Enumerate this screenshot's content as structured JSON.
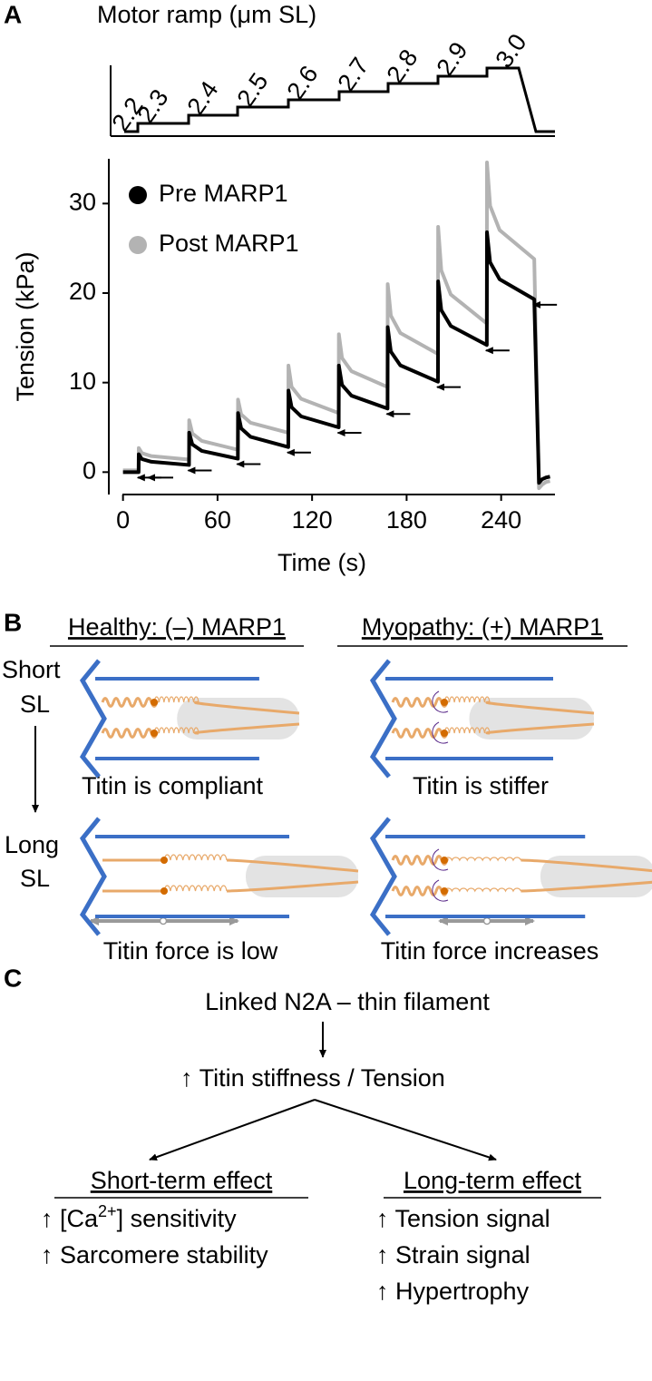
{
  "chart_data": {
    "type": "line",
    "panel": "A",
    "ramp": {
      "label": "Motor ramp (μm SL)",
      "levels": [
        "2.2",
        "2.3",
        "2.4",
        "2.5",
        "2.6",
        "2.7",
        "2.8",
        "2.9",
        "3.0"
      ]
    },
    "x_label": "Time (s)",
    "y_label": "Tension (kPa)",
    "x": [
      0,
      9.9,
      10,
      12,
      18,
      41.9,
      42,
      44,
      50,
      72.9,
      73,
      75,
      81,
      104.9,
      105,
      107,
      113,
      136.9,
      137,
      139,
      145,
      167.9,
      168,
      170,
      176,
      199.9,
      200,
      202,
      208,
      230.9,
      231,
      233,
      239,
      261,
      264,
      266,
      268.5,
      271
    ],
    "series": [
      {
        "name": "Pre MARP1",
        "color": "#000000",
        "values": [
          0,
          0,
          2.0,
          1.46,
          1.16,
          0.8,
          4.4,
          3.1,
          2.37,
          1.5,
          6.6,
          4.89,
          3.94,
          2.8,
          9.1,
          7.25,
          6.23,
          5.0,
          11.9,
          9.74,
          8.54,
          7.1,
          16.2,
          13.46,
          11.93,
          10.1,
          21.3,
          18.1,
          16.33,
          14.2,
          26.8,
          23.43,
          21.55,
          19.3,
          -1.2,
          -0.8,
          -0.6,
          -0.5
        ]
      },
      {
        "name": "Post MARP1",
        "color": "#b3b3b3",
        "values": [
          0.2,
          0.2,
          2.7,
          2.12,
          1.79,
          1.4,
          5.8,
          4.32,
          3.49,
          2.5,
          8.1,
          6.44,
          5.51,
          4.4,
          11.9,
          9.52,
          8.19,
          6.6,
          15.4,
          12.75,
          11.27,
          9.5,
          21.0,
          17.49,
          15.54,
          13.2,
          27.4,
          22.54,
          19.84,
          16.6,
          34.6,
          29.74,
          27.04,
          23.8,
          -1.8,
          -1.4,
          -1.1,
          -1.0
        ]
      }
    ],
    "xlim": [
      -9,
      273
    ],
    "ylim": [
      -2.5,
      35
    ],
    "xticks": [
      0,
      60,
      120,
      180,
      240
    ],
    "yticks": [
      0,
      10,
      20,
      30
    ]
  },
  "panel_b": {
    "label": "B",
    "healthy": "Healthy: (–) MARP1",
    "myopathy": "Myopathy: (+) MARP1",
    "short": [
      "Short",
      "SL"
    ],
    "long": [
      "Long",
      "SL"
    ],
    "captions": [
      "Titin is compliant",
      "Titin is stiffer",
      "Titin force is low",
      "Titin force increases"
    ]
  },
  "panel_c": {
    "label": "C",
    "top": "Linked N2A – thin filament",
    "middle": "↑ Titin stiffness / Tension",
    "short_term": {
      "heading": "Short-term effect",
      "ca_parts": [
        "↑ [Ca",
        "2+",
        "] sensitivity"
      ],
      "items": [
        "↑ Sarcomere stability"
      ]
    },
    "long_term": {
      "heading": "Long-term effect",
      "items": [
        "↑ Tension signal",
        "↑ Strain signal",
        "↑ Hypertrophy"
      ]
    }
  }
}
